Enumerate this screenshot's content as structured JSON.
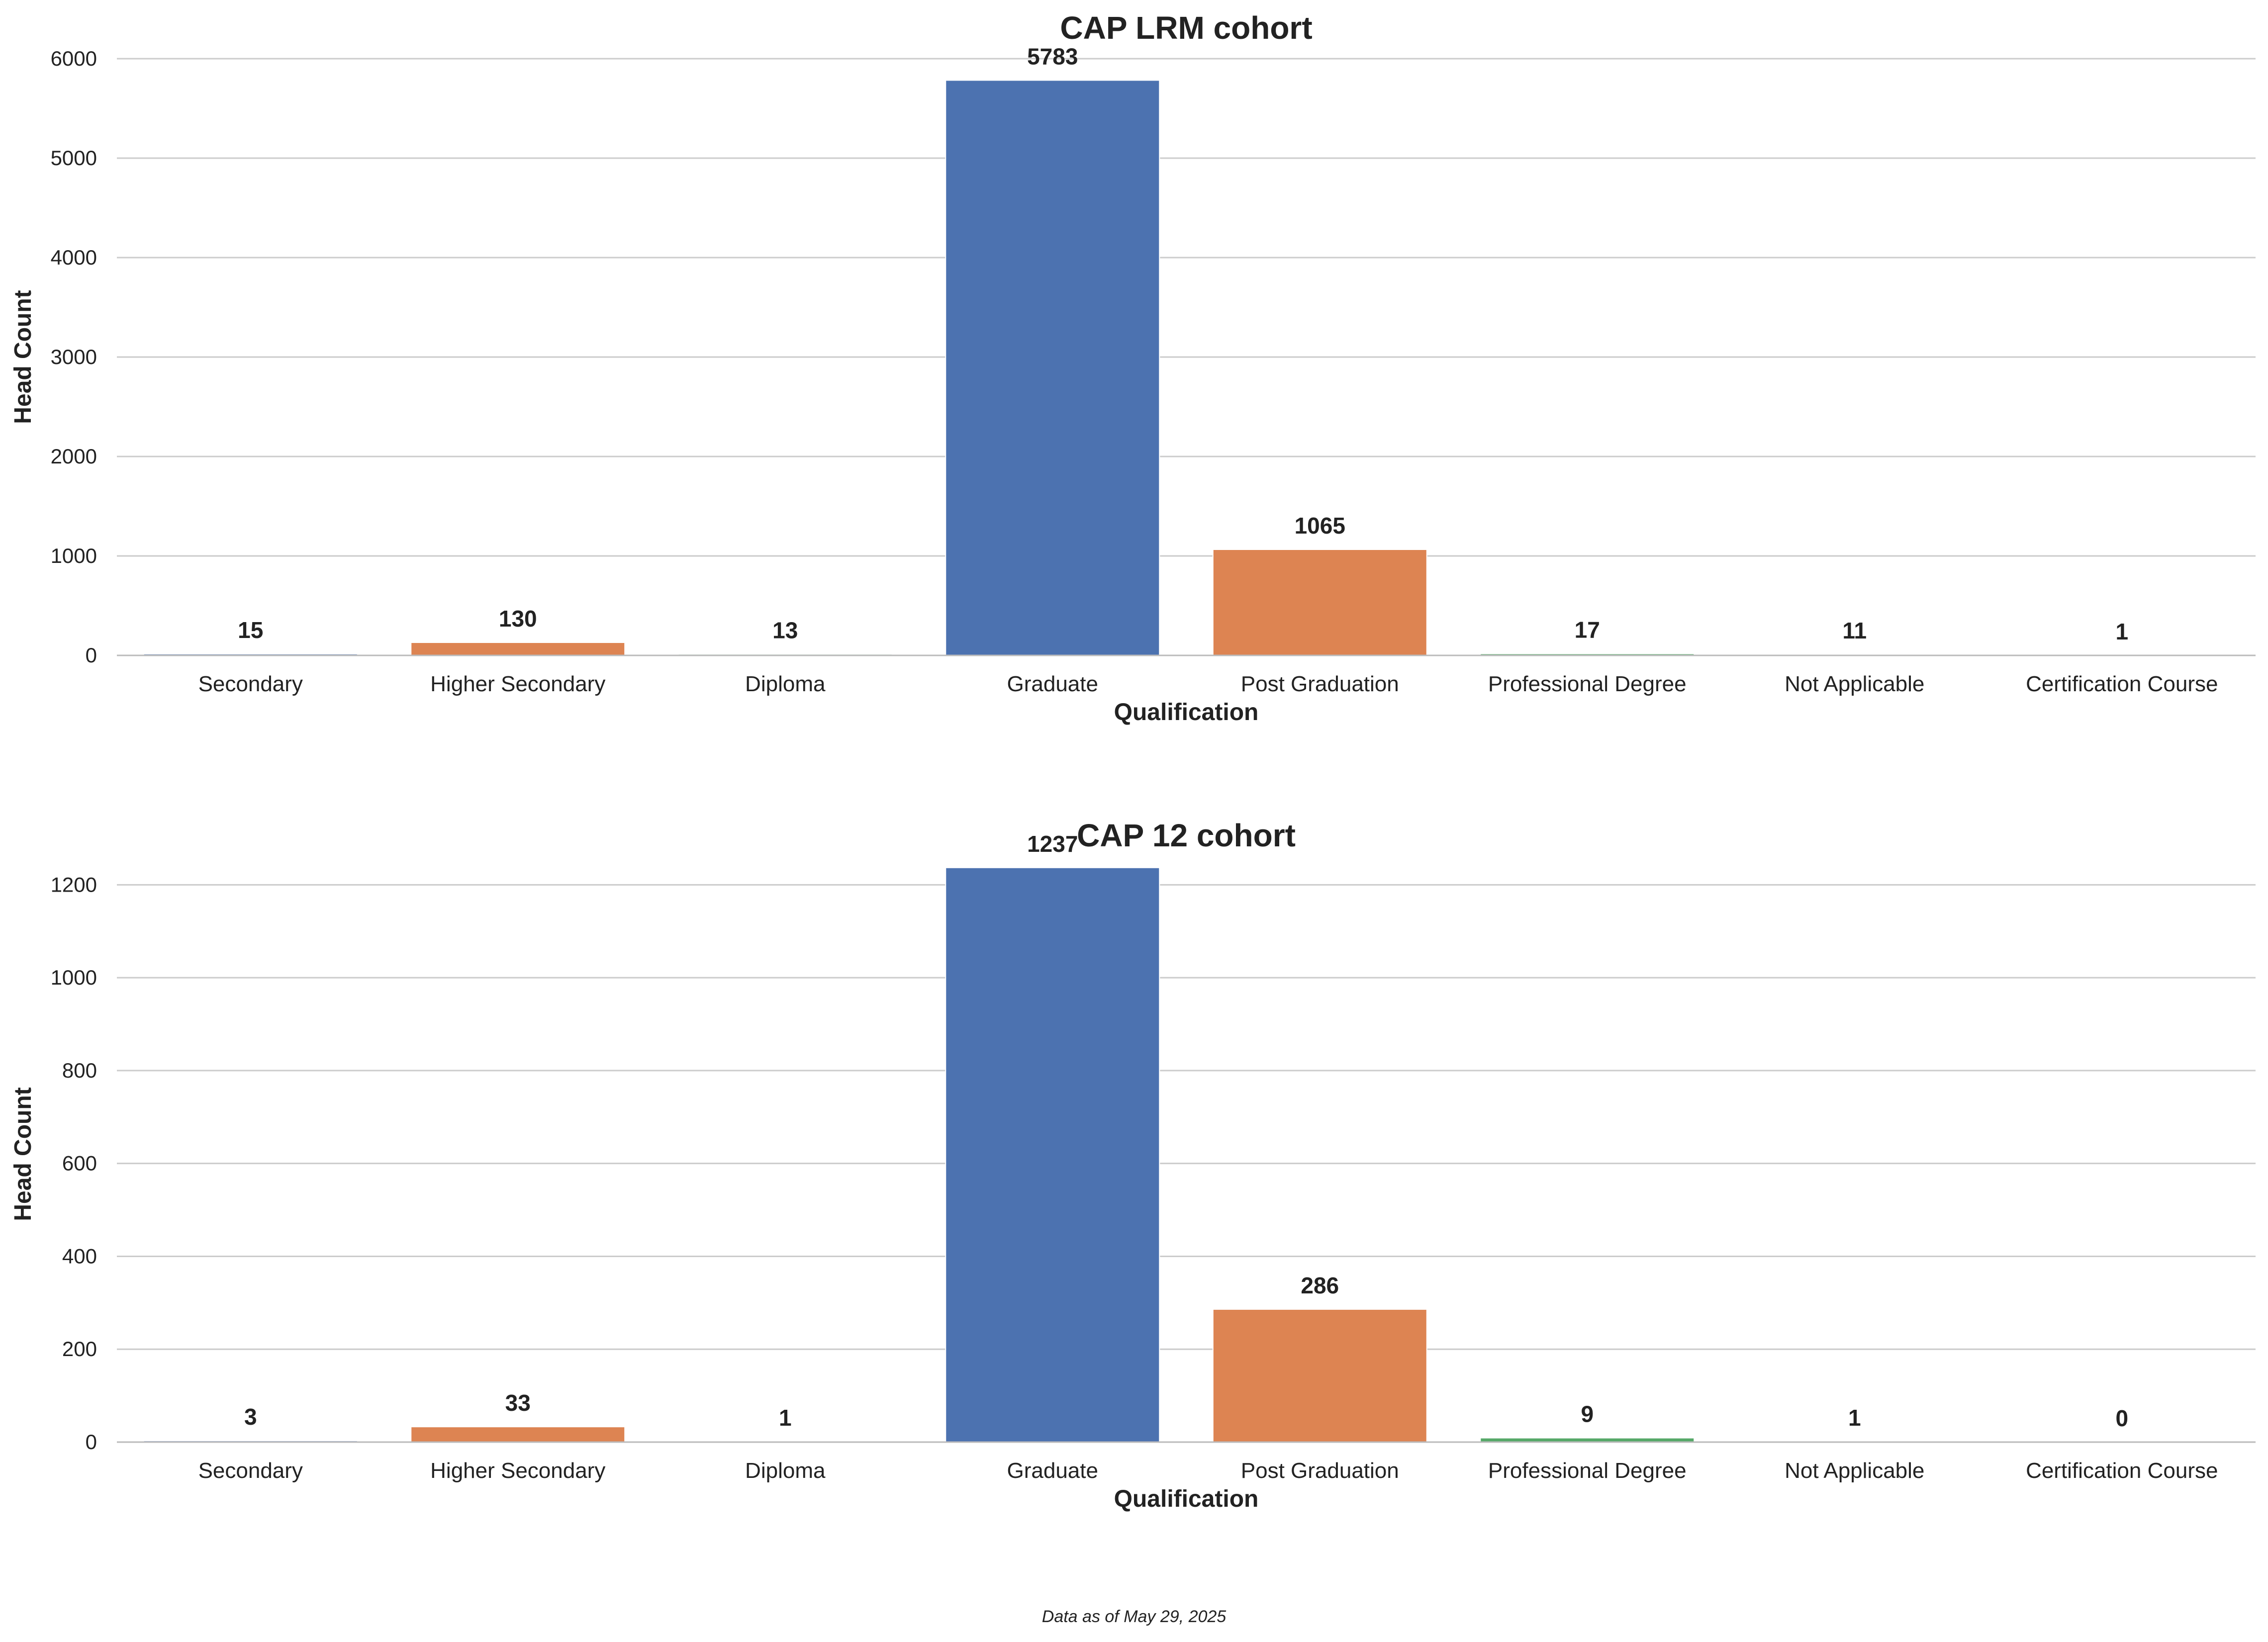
{
  "chart_data": [
    {
      "type": "bar",
      "title": "CAP LRM cohort",
      "xlabel": "Qualification",
      "ylabel": "Head Count",
      "categories": [
        "Secondary",
        "Higher Secondary",
        "Diploma",
        "Graduate",
        "Post Graduation",
        "Professional Degree",
        "Not Applicable",
        "Certification Course"
      ],
      "values": [
        15,
        130,
        13,
        5783,
        1065,
        17,
        11,
        1
      ],
      "value_labels": [
        "15",
        "130",
        "13",
        "5783",
        "1065",
        "17",
        "11",
        "1"
      ],
      "ylim": [
        0,
        6000
      ],
      "yticks": [
        0,
        1000,
        2000,
        3000,
        4000,
        5000,
        6000
      ],
      "grid": "horizontal",
      "bar_colors": [
        "#4c72b0",
        "#dd8452",
        "#55a868",
        "#4c72b0",
        "#dd8452",
        "#55a868",
        "#c44e52",
        "#8172b3"
      ]
    },
    {
      "type": "bar",
      "title": "CAP 12 cohort",
      "xlabel": "Qualification",
      "ylabel": "Head Count",
      "categories": [
        "Secondary",
        "Higher Secondary",
        "Diploma",
        "Graduate",
        "Post Graduation",
        "Professional Degree",
        "Not Applicable",
        "Certification Course"
      ],
      "values": [
        3,
        33,
        1,
        1237,
        286,
        9,
        1,
        0
      ],
      "value_labels": [
        "3",
        "33",
        "1",
        "1237",
        "286",
        "9",
        "1",
        "0"
      ],
      "ylim": [
        0,
        1240
      ],
      "yticks": [
        0,
        200,
        400,
        600,
        800,
        1000,
        1200
      ],
      "grid": "horizontal",
      "bar_colors": [
        "#4c72b0",
        "#dd8452",
        "#55a868",
        "#4c72b0",
        "#dd8452",
        "#55a868",
        "#c44e52",
        "#8172b3"
      ]
    }
  ],
  "footnote": "Data as of May 29, 2025"
}
